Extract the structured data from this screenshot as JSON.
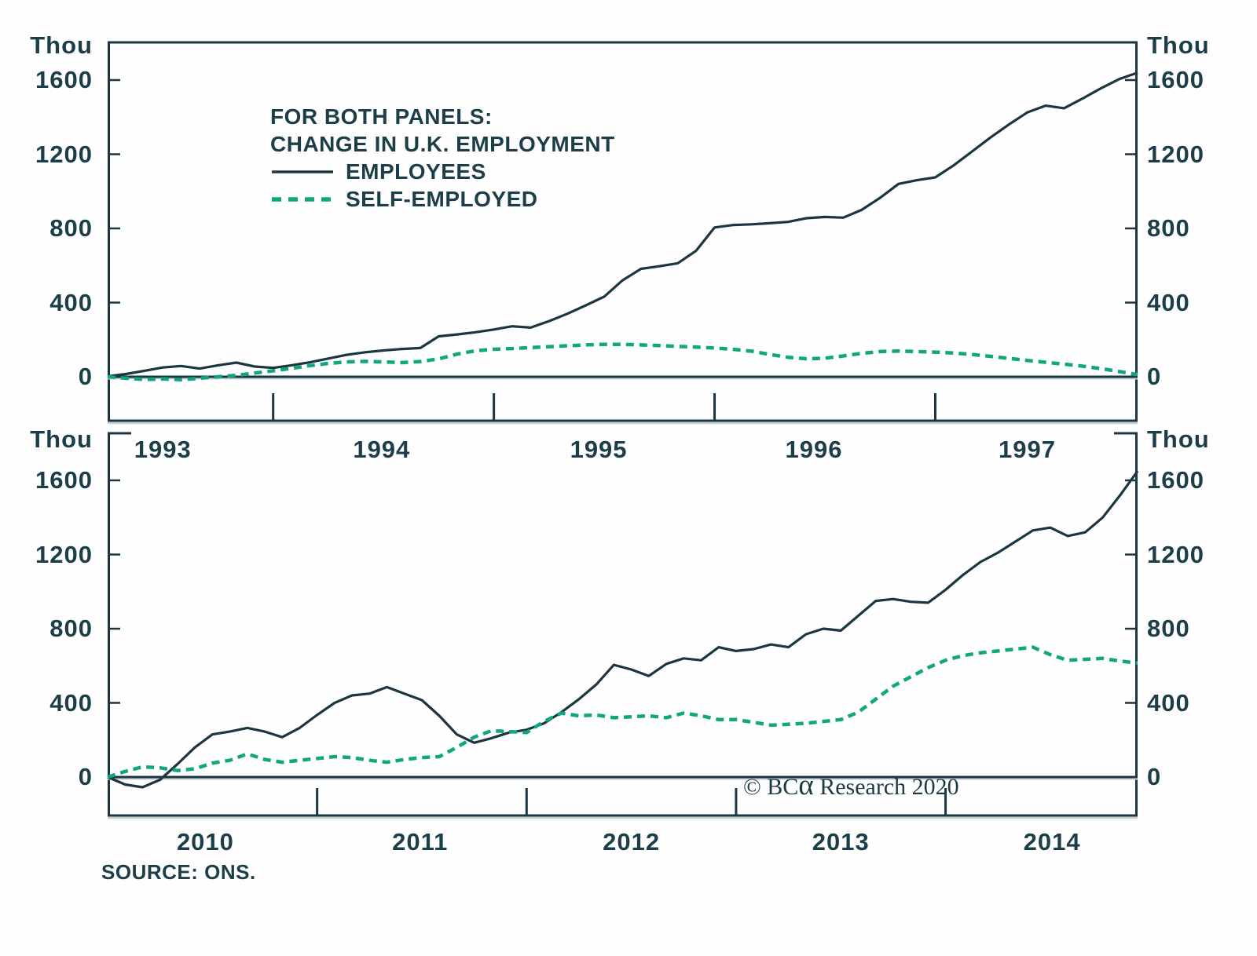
{
  "figure": {
    "unit_label": "Thou",
    "source": "SOURCE: ONS.",
    "credit": {
      "pre": "© BC",
      "alpha": "α",
      "post": " Research 2020"
    },
    "legend": {
      "title_line1": "FOR BOTH PANELS:",
      "title_line2": "CHANGE IN U.K. EMPLOYMENT",
      "entries": [
        {
          "label": "EMPLOYEES",
          "style": "solid",
          "color": "#1b3641"
        },
        {
          "label": "SELF-EMPLOYED",
          "style": "dashed",
          "color": "#11a77c"
        }
      ]
    },
    "colors": {
      "employees": "#1b3641",
      "self_employed": "#11a77c",
      "axis": "#1b3641",
      "text": "#1c3e49",
      "shadow": "#c3d1d4"
    }
  },
  "chart_data": [
    {
      "type": "line",
      "panel": "top",
      "x_range": "Apr 1993 - Dec 1997 (monthly)",
      "ylabel": "Thou",
      "ylim": [
        -245,
        1800
      ],
      "grid": false,
      "legend_position": "upper-left-inside",
      "y_ticks": [
        {
          "label": "1600",
          "value": 1600
        },
        {
          "label": "1200",
          "value": 1200
        },
        {
          "label": "800",
          "value": 800
        },
        {
          "label": "400",
          "value": 400
        },
        {
          "label": "0",
          "value": 0
        }
      ],
      "year_labels": [
        {
          "label": "1993",
          "month": 3.0
        },
        {
          "label": "1994",
          "month": 14.9
        },
        {
          "label": "1995",
          "month": 26.7
        },
        {
          "label": "1996",
          "month": 38.4
        },
        {
          "label": "1997",
          "month": 50.0
        }
      ],
      "year_boundary_months": [
        9,
        21,
        33,
        45
      ],
      "series": [
        {
          "name": "EMPLOYEES",
          "style": "solid",
          "values": [
            2,
            15,
            32,
            50,
            58,
            44,
            62,
            76,
            55,
            48,
            62,
            78,
            98,
            118,
            132,
            142,
            150,
            155,
            218,
            228,
            240,
            255,
            272,
            265,
            300,
            340,
            385,
            432,
            520,
            582,
            596,
            612,
            680,
            805,
            818,
            822,
            828,
            835,
            855,
            862,
            858,
            900,
            965,
            1040,
            1060,
            1075,
            1140,
            1215,
            1290,
            1360,
            1425,
            1462,
            1448,
            1500,
            1555,
            1605,
            1640
          ]
        },
        {
          "name": "SELF-EMPLOYED",
          "style": "dashed",
          "values": [
            0,
            -8,
            -15,
            -12,
            -16,
            -8,
            0,
            8,
            20,
            32,
            45,
            60,
            72,
            80,
            83,
            80,
            76,
            82,
            96,
            122,
            140,
            148,
            152,
            157,
            162,
            167,
            172,
            175,
            175,
            172,
            168,
            164,
            160,
            155,
            148,
            138,
            120,
            105,
            97,
            100,
            112,
            126,
            136,
            139,
            136,
            133,
            128,
            120,
            110,
            99,
            88,
            78,
            68,
            57,
            44,
            28,
            12
          ]
        }
      ]
    },
    {
      "type": "line",
      "panel": "bottom",
      "x_range": "Jan 2010 - Dec 2014 (monthly)",
      "ylabel": "Thou",
      "ylim": [
        -212,
        1850
      ],
      "grid": false,
      "y_ticks": [
        {
          "label": "1600",
          "value": 1600
        },
        {
          "label": "1200",
          "value": 1200
        },
        {
          "label": "800",
          "value": 800
        },
        {
          "label": "400",
          "value": 400
        },
        {
          "label": "0",
          "value": 0
        }
      ],
      "year_labels": [
        {
          "label": "2010",
          "month": 5.6
        },
        {
          "label": "2011",
          "month": 17.9
        },
        {
          "label": "2012",
          "month": 30.0
        },
        {
          "label": "2013",
          "month": 42.0
        },
        {
          "label": "2014",
          "month": 54.1
        }
      ],
      "year_boundary_months": [
        12,
        24,
        36,
        48
      ],
      "series": [
        {
          "name": "EMPLOYEES",
          "style": "solid",
          "values": [
            0,
            -40,
            -55,
            -15,
            70,
            160,
            230,
            245,
            265,
            245,
            215,
            265,
            335,
            400,
            440,
            450,
            485,
            450,
            415,
            330,
            230,
            185,
            210,
            240,
            255,
            290,
            350,
            420,
            500,
            605,
            580,
            545,
            610,
            640,
            630,
            700,
            680,
            690,
            715,
            700,
            770,
            800,
            790,
            870,
            950,
            960,
            945,
            940,
            1010,
            1090,
            1160,
            1210,
            1270,
            1330,
            1345,
            1300,
            1320,
            1400,
            1520,
            1650
          ]
        },
        {
          "name": "SELF-EMPLOYED",
          "style": "dashed",
          "values": [
            0,
            30,
            55,
            50,
            35,
            45,
            75,
            90,
            125,
            95,
            80,
            90,
            100,
            110,
            105,
            90,
            80,
            95,
            105,
            110,
            160,
            215,
            250,
            245,
            240,
            300,
            345,
            330,
            335,
            320,
            325,
            330,
            320,
            345,
            330,
            310,
            310,
            295,
            280,
            285,
            290,
            300,
            310,
            350,
            420,
            490,
            540,
            590,
            630,
            655,
            670,
            680,
            690,
            700,
            660,
            630,
            635,
            640,
            625,
            615
          ]
        }
      ]
    }
  ]
}
